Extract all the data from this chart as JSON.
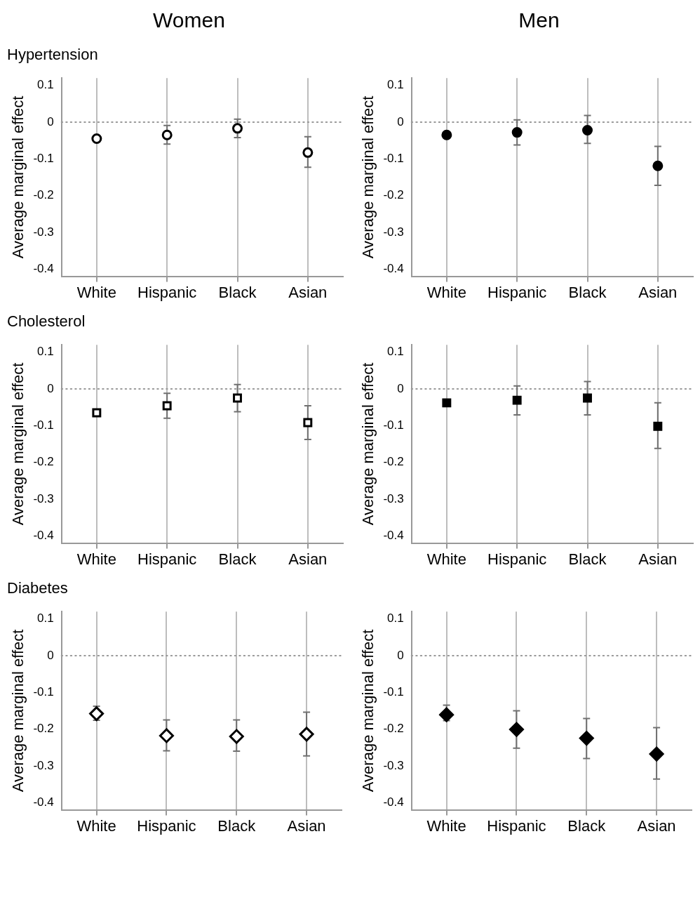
{
  "chart_data": [
    {
      "type": "scatter",
      "title": "Women",
      "subtitle": "Hypertension",
      "ylabel": "Average marginal effect",
      "categories": [
        "White",
        "Hispanic",
        "Black",
        "Asian"
      ],
      "marker": "circle",
      "grid": "x",
      "ylim": [
        -0.42,
        0.12
      ],
      "yticks": [
        0.1,
        0,
        -0.1,
        -0.2,
        -0.3,
        -0.4
      ],
      "ref_lines": [
        {
          "axis": "y",
          "value": 0,
          "line_style": "dotted"
        }
      ],
      "series": [
        {
          "color": "#000000",
          "values": [
            -0.045,
            -0.035,
            -0.017,
            -0.083
          ],
          "errors": [
            null,
            [
              -0.06,
              -0.009
            ],
            [
              -0.042,
              0.008
            ],
            [
              -0.123,
              -0.04
            ]
          ]
        }
      ]
    },
    {
      "type": "scatter",
      "title": "Men",
      "ylabel": "Average marginal effect",
      "categories": [
        "White",
        "Hispanic",
        "Black",
        "Asian"
      ],
      "marker": "circle",
      "grid": "x",
      "ylim": [
        -0.42,
        0.12
      ],
      "yticks": [
        0.1,
        0,
        -0.1,
        -0.2,
        -0.3,
        -0.4
      ],
      "ref_lines": [
        {
          "axis": "y",
          "value": 0,
          "line_style": "dotted"
        }
      ],
      "series": [
        {
          "color": "#000000",
          "values": [
            -0.035,
            -0.028,
            -0.022,
            -0.119
          ],
          "errors": [
            null,
            [
              -0.062,
              0.006
            ],
            [
              -0.058,
              0.018
            ],
            [
              -0.172,
              -0.066
            ]
          ]
        }
      ]
    },
    {
      "type": "scatter",
      "subtitle": "Cholesterol",
      "ylabel": "Average marginal effect",
      "categories": [
        "White",
        "Hispanic",
        "Black",
        "Asian"
      ],
      "marker": "square",
      "grid": "x",
      "ylim": [
        -0.42,
        0.12
      ],
      "yticks": [
        0.1,
        0,
        -0.1,
        -0.2,
        -0.3,
        -0.4
      ],
      "ref_lines": [
        {
          "axis": "y",
          "value": 0,
          "line_style": "dotted"
        }
      ],
      "series": [
        {
          "color": "#000000",
          "values": [
            -0.065,
            -0.046,
            -0.025,
            -0.092
          ],
          "errors": [
            null,
            [
              -0.08,
              -0.012
            ],
            [
              -0.062,
              0.012
            ],
            [
              -0.138,
              -0.046
            ]
          ]
        }
      ]
    },
    {
      "type": "scatter",
      "ylabel": "Average marginal effect",
      "categories": [
        "White",
        "Hispanic",
        "Black",
        "Asian"
      ],
      "marker": "square",
      "grid": "x",
      "ylim": [
        -0.42,
        0.12
      ],
      "yticks": [
        0.1,
        0,
        -0.1,
        -0.2,
        -0.3,
        -0.4
      ],
      "ref_lines": [
        {
          "axis": "y",
          "value": 0,
          "line_style": "dotted"
        }
      ],
      "series": [
        {
          "color": "#000000",
          "values": [
            -0.038,
            -0.031,
            -0.025,
            -0.102
          ],
          "errors": [
            null,
            [
              -0.071,
              0.008
            ],
            [
              -0.071,
              0.02
            ],
            [
              -0.162,
              -0.038
            ]
          ]
        }
      ]
    },
    {
      "type": "scatter",
      "subtitle": "Diabetes",
      "ylabel": "Average marginal effect",
      "categories": [
        "White",
        "Hispanic",
        "Black",
        "Asian"
      ],
      "marker": "diamond",
      "grid": "x",
      "ylim": [
        -0.42,
        0.12
      ],
      "yticks": [
        0.1,
        0,
        -0.1,
        -0.2,
        -0.3,
        -0.4
      ],
      "ref_lines": [
        {
          "axis": "y",
          "value": 0,
          "line_style": "dotted"
        }
      ],
      "series": [
        {
          "color": "#000000",
          "values": [
            -0.158,
            -0.218,
            -0.22,
            -0.214
          ],
          "errors": [
            [
              -0.176,
              -0.138
            ],
            [
              -0.259,
              -0.175
            ],
            [
              -0.26,
              -0.175
            ],
            [
              -0.273,
              -0.154
            ]
          ]
        }
      ]
    },
    {
      "type": "scatter",
      "ylabel": "Average marginal effect",
      "categories": [
        "White",
        "Hispanic",
        "Black",
        "Asian"
      ],
      "marker": "diamond",
      "grid": "x",
      "ylim": [
        -0.42,
        0.12
      ],
      "yticks": [
        0.1,
        0,
        -0.1,
        -0.2,
        -0.3,
        -0.4
      ],
      "ref_lines": [
        {
          "axis": "y",
          "value": 0,
          "line_style": "dotted"
        }
      ],
      "series": [
        {
          "color": "#000000",
          "values": [
            -0.161,
            -0.201,
            -0.225,
            -0.268
          ],
          "errors": [
            [
              -0.177,
              -0.135
            ],
            [
              -0.252,
              -0.15
            ],
            [
              -0.28,
              -0.171
            ],
            [
              -0.336,
              -0.196
            ]
          ]
        }
      ]
    }
  ]
}
